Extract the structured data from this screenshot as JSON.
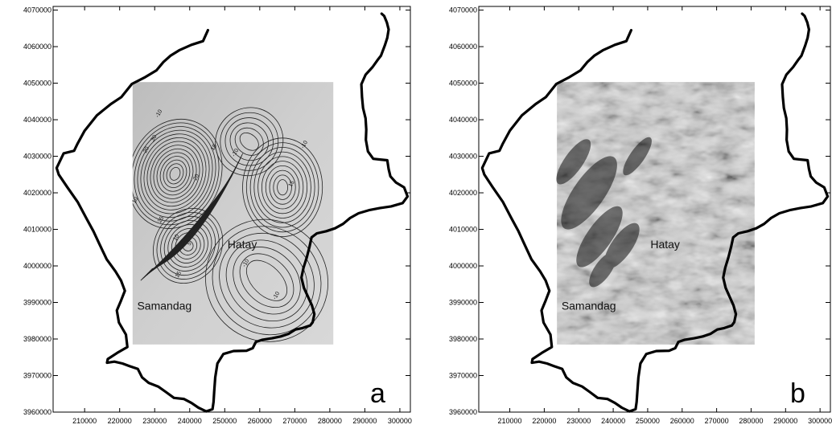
{
  "panels": [
    {
      "letter": "a",
      "kind": "contour",
      "places": [
        "Hatay",
        "Samandag"
      ],
      "contour_labels": [
        "-10",
        "18",
        "-10",
        "-10",
        "30",
        "20",
        "10",
        "20",
        "25",
        "10",
        "5",
        "15",
        "-10",
        "15",
        "-10"
      ]
    },
    {
      "letter": "b",
      "kind": "shaded-relief",
      "places": [
        "Hatay",
        "Samandag"
      ],
      "contour_labels": []
    }
  ],
  "axes": {
    "x_ticks": [
      "210000",
      "220000",
      "230000",
      "240000",
      "250000",
      "260000",
      "270000",
      "280000",
      "290000",
      "300000"
    ],
    "y_ticks": [
      "4070000",
      "4060000",
      "4050000",
      "4040000",
      "4030000",
      "4020000",
      "4010000",
      "4000000",
      "3990000",
      "3980000",
      "3970000",
      "3960000"
    ],
    "x_range": [
      201000,
      303000
    ],
    "y_range": [
      3960000,
      4071000
    ]
  },
  "colors": {
    "border": "#000000",
    "grid_fill_a": "#c8c8c8",
    "grid_fill_b": "#d4d4d4"
  }
}
